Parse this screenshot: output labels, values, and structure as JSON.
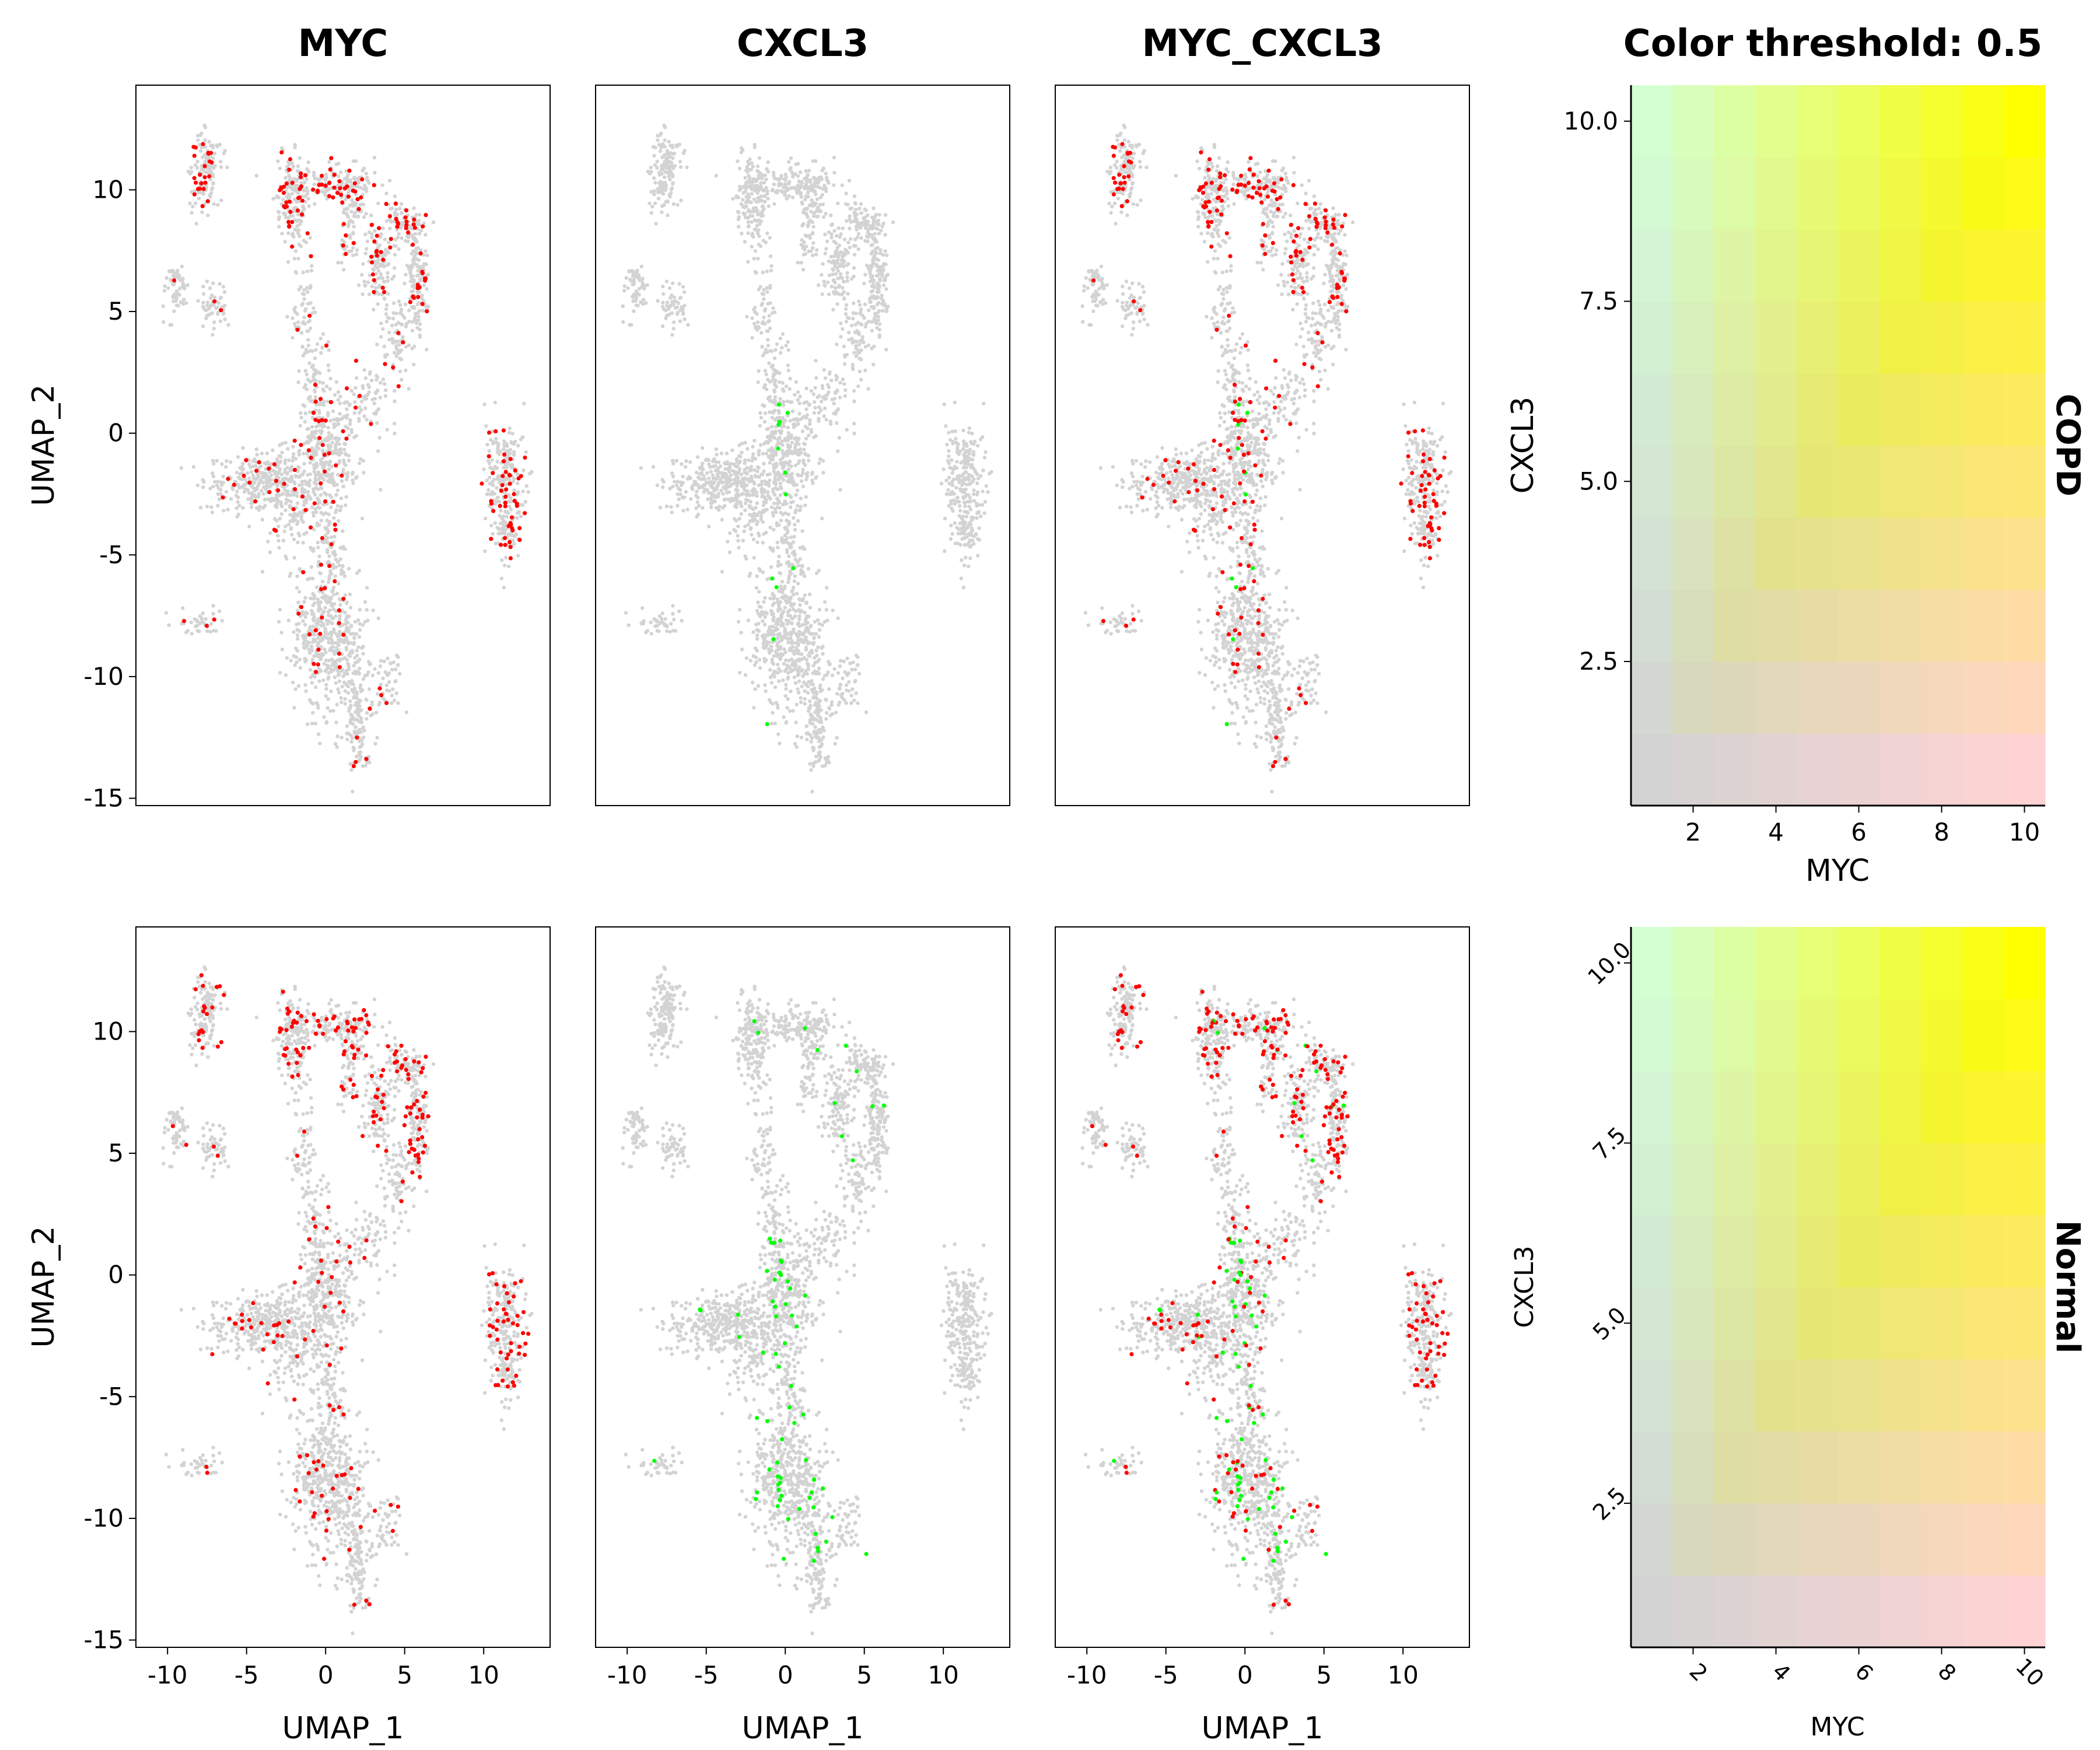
{
  "chart_data": {
    "type": "scatter",
    "threshold_title": "Color threshold: 0.5",
    "row_labels": [
      "COPD",
      "Normal"
    ],
    "panels": [
      {
        "title": "MYC",
        "highlight": "#ff0000"
      },
      {
        "title": "CXCL3",
        "highlight": "#00ff00"
      },
      {
        "title": "MYC_CXCL3",
        "highlight": "mixed"
      }
    ],
    "umap": {
      "xlabel": "UMAP_1",
      "ylabel": "UMAP_2",
      "xlim": [
        -12,
        14.2
      ],
      "ylim": [
        -15.3,
        14.3
      ],
      "xticks": [
        -10,
        -5,
        0,
        5,
        10
      ],
      "xtick_labels": [
        "-10",
        "-5",
        "0",
        "5",
        "10"
      ],
      "yticks": [
        10,
        5,
        0,
        -5,
        -10,
        -15
      ],
      "ytick_labels": [
        "10",
        "5",
        "0",
        "-5",
        "-10",
        "-15"
      ],
      "background_color": "#d3d3d3"
    },
    "clusters": [
      {
        "cx": -7.5,
        "cy": 11.3,
        "sx": 0.45,
        "sy": 0.6,
        "n": 90
      },
      {
        "cx": -7.7,
        "cy": 10.0,
        "sx": 0.4,
        "sy": 0.5,
        "n": 60
      },
      {
        "cx": -9.5,
        "cy": 6.0,
        "sx": 0.4,
        "sy": 0.5,
        "n": 60
      },
      {
        "cx": -7.0,
        "cy": 5.2,
        "sx": 0.45,
        "sy": 0.5,
        "n": 50
      },
      {
        "cx": -2.2,
        "cy": 9.6,
        "sx": 0.5,
        "sy": 0.9,
        "n": 160
      },
      {
        "cx": 0.5,
        "cy": 10.3,
        "sx": 1.4,
        "sy": 0.4,
        "n": 160
      },
      {
        "cx": 1.6,
        "cy": 9.0,
        "sx": 0.4,
        "sy": 1.0,
        "n": 80
      },
      {
        "cx": 3.3,
        "cy": 6.8,
        "sx": 0.45,
        "sy": 0.9,
        "n": 110
      },
      {
        "cx": 4.8,
        "cy": 8.6,
        "sx": 0.7,
        "sy": 0.5,
        "n": 90
      },
      {
        "cx": 5.8,
        "cy": 6.3,
        "sx": 0.35,
        "sy": 1.2,
        "n": 150
      },
      {
        "cx": 4.6,
        "cy": 3.7,
        "sx": 0.5,
        "sy": 0.9,
        "n": 80
      },
      {
        "cx": 2.7,
        "cy": 1.3,
        "sx": 0.8,
        "sy": 0.7,
        "n": 70
      },
      {
        "cx": -1.5,
        "cy": 5.5,
        "sx": 0.4,
        "sy": 1.2,
        "n": 60
      },
      {
        "cx": -0.9,
        "cy": 2.3,
        "sx": 0.4,
        "sy": 1.3,
        "n": 70
      },
      {
        "cx": 0.0,
        "cy": -0.6,
        "sx": 0.9,
        "sy": 1.4,
        "n": 320
      },
      {
        "cx": -3.6,
        "cy": -2.0,
        "sx": 2.0,
        "sy": 0.55,
        "n": 380
      },
      {
        "cx": -2.2,
        "cy": -3.5,
        "sx": 0.9,
        "sy": 0.9,
        "n": 90
      },
      {
        "cx": 0.4,
        "cy": -4.8,
        "sx": 0.4,
        "sy": 1.3,
        "n": 80
      },
      {
        "cx": -0.2,
        "cy": -8.2,
        "sx": 1.1,
        "sy": 1.5,
        "n": 380
      },
      {
        "cx": 1.6,
        "cy": -9.6,
        "sx": 0.7,
        "sy": 1.4,
        "n": 140
      },
      {
        "cx": 2.1,
        "cy": -12.2,
        "sx": 0.45,
        "sy": 0.9,
        "n": 100
      },
      {
        "cx": 3.8,
        "cy": -10.3,
        "sx": 0.5,
        "sy": 0.6,
        "n": 50
      },
      {
        "cx": -7.9,
        "cy": -7.8,
        "sx": 0.9,
        "sy": 0.3,
        "n": 40
      },
      {
        "cx": 11.3,
        "cy": -2.0,
        "sx": 0.6,
        "sy": 1.2,
        "n": 220
      },
      {
        "cx": 11.5,
        "cy": -4.1,
        "sx": 0.3,
        "sy": 0.6,
        "n": 50
      }
    ],
    "legend": {
      "xlabel": "MYC",
      "ylabel": "CXCL3",
      "xlim": [
        0.5,
        10.5
      ],
      "ylim": [
        0.5,
        10.5
      ],
      "grid_n": 10,
      "xticks": [
        2,
        4,
        6,
        8,
        10
      ],
      "xtick_labels": [
        "2",
        "4",
        "6",
        "8",
        "10"
      ],
      "yticks": [
        10.0,
        7.5,
        5.0,
        2.5
      ],
      "ytick_labels": [
        "10.0",
        "7.5",
        "5.0",
        "2.5"
      ],
      "colors": {
        "none": "#d3d3d3",
        "x_color": "#ff0000",
        "y_color": "#00ff00"
      }
    }
  }
}
